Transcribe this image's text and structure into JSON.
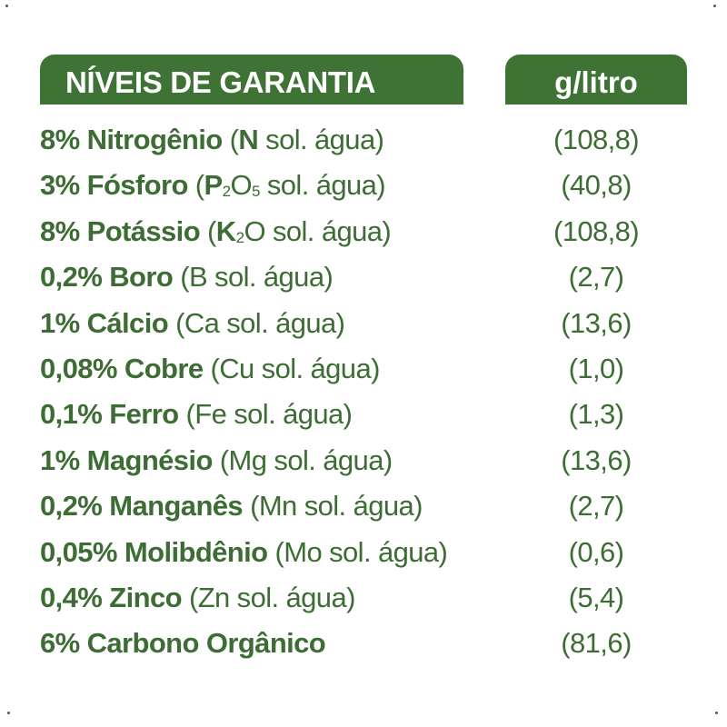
{
  "header": {
    "left_title": "NÍVEIS DE GARANTIA",
    "right_title": "g/litro"
  },
  "colors": {
    "brand_green": "#3f7235",
    "text_green": "#3d6d35",
    "header_text": "#ffffff"
  },
  "rows": [
    {
      "main": "8% Nitrogênio",
      "open": " (",
      "sym": "N",
      "sym_sub": "",
      "sym_rest": "",
      "rest": " sol. água)",
      "value": "(108,8)"
    },
    {
      "main": "3% Fósforo",
      "open": " (",
      "sym": "P",
      "sym_sub": "2",
      "sym_rest": "O",
      "sym_sub2": "5",
      "rest": " sol. água)",
      "value": "(40,8)"
    },
    {
      "main": "8% Potássio",
      "open": " (",
      "sym": "K",
      "sym_sub": "2",
      "sym_rest": "O",
      "rest": " sol. água)",
      "value": "(108,8)"
    },
    {
      "main": "0,2% Boro",
      "open": " (",
      "sym": "",
      "rest": "B sol. água)",
      "value": "(2,7)"
    },
    {
      "main": "1% Cálcio",
      "open": " (",
      "sym": "",
      "rest": "Ca sol. água)",
      "value": "(13,6)"
    },
    {
      "main": "0,08% Cobre",
      "open": " (",
      "sym": "",
      "rest": "Cu sol. água)",
      "value": "(1,0)"
    },
    {
      "main": "0,1% Ferro",
      "open": " (",
      "sym": "",
      "rest": "Fe sol. água)",
      "value": "(1,3)"
    },
    {
      "main": "1% Magnésio",
      "open": " (",
      "sym": "",
      "rest": "Mg sol. água)",
      "value": "(13,6)"
    },
    {
      "main": "0,2% Manganês",
      "open": " (",
      "sym": "",
      "rest": "Mn sol. água)",
      "value": "(2,7)"
    },
    {
      "main": "0,05% Molibdênio",
      "open": " (",
      "sym": "",
      "rest": "Mo sol. água)",
      "value": "(0,6)"
    },
    {
      "main": "0,4% Zinco",
      "open": " (",
      "sym": "",
      "rest": "Zn sol. água)",
      "value": "(5,4)"
    },
    {
      "main": "6% Carbono Orgânico",
      "open": "",
      "sym": "",
      "rest": "",
      "value": "(81,6)"
    }
  ]
}
